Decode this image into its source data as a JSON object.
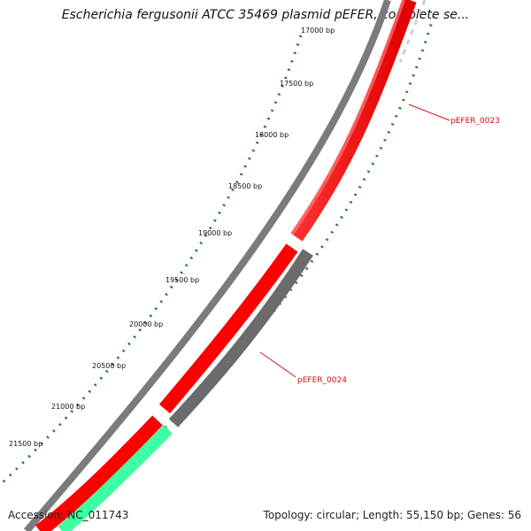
{
  "title": "Escherichia fergusonii ATCC 35469 plasmid pEFER, complete se...",
  "accession": "Accession: NC_011743",
  "summary": "Topology: circular; Length: 55,150 bp; Genes: 56",
  "colors": {
    "forward_cds": "#ff0000",
    "forward_cds_light": "#ff7070",
    "reverse_cds": "#6b6b6b",
    "other_feature": "#3dffa3",
    "backbone": "#8c8c8c",
    "ticks": "#1a7a1a",
    "label": "#d01010"
  },
  "scale": {
    "labels": [
      "17000 bp",
      "17500 bp",
      "18000 bp",
      "18500 bp",
      "19000 bp",
      "19500 bp",
      "20000 bp",
      "20500 bp",
      "21000 bp",
      "21500 bp"
    ]
  },
  "genes": [
    {
      "name": "pEFER_0023",
      "strand": "forward"
    },
    {
      "name": "pEFER_0024",
      "strand": "forward"
    }
  ]
}
